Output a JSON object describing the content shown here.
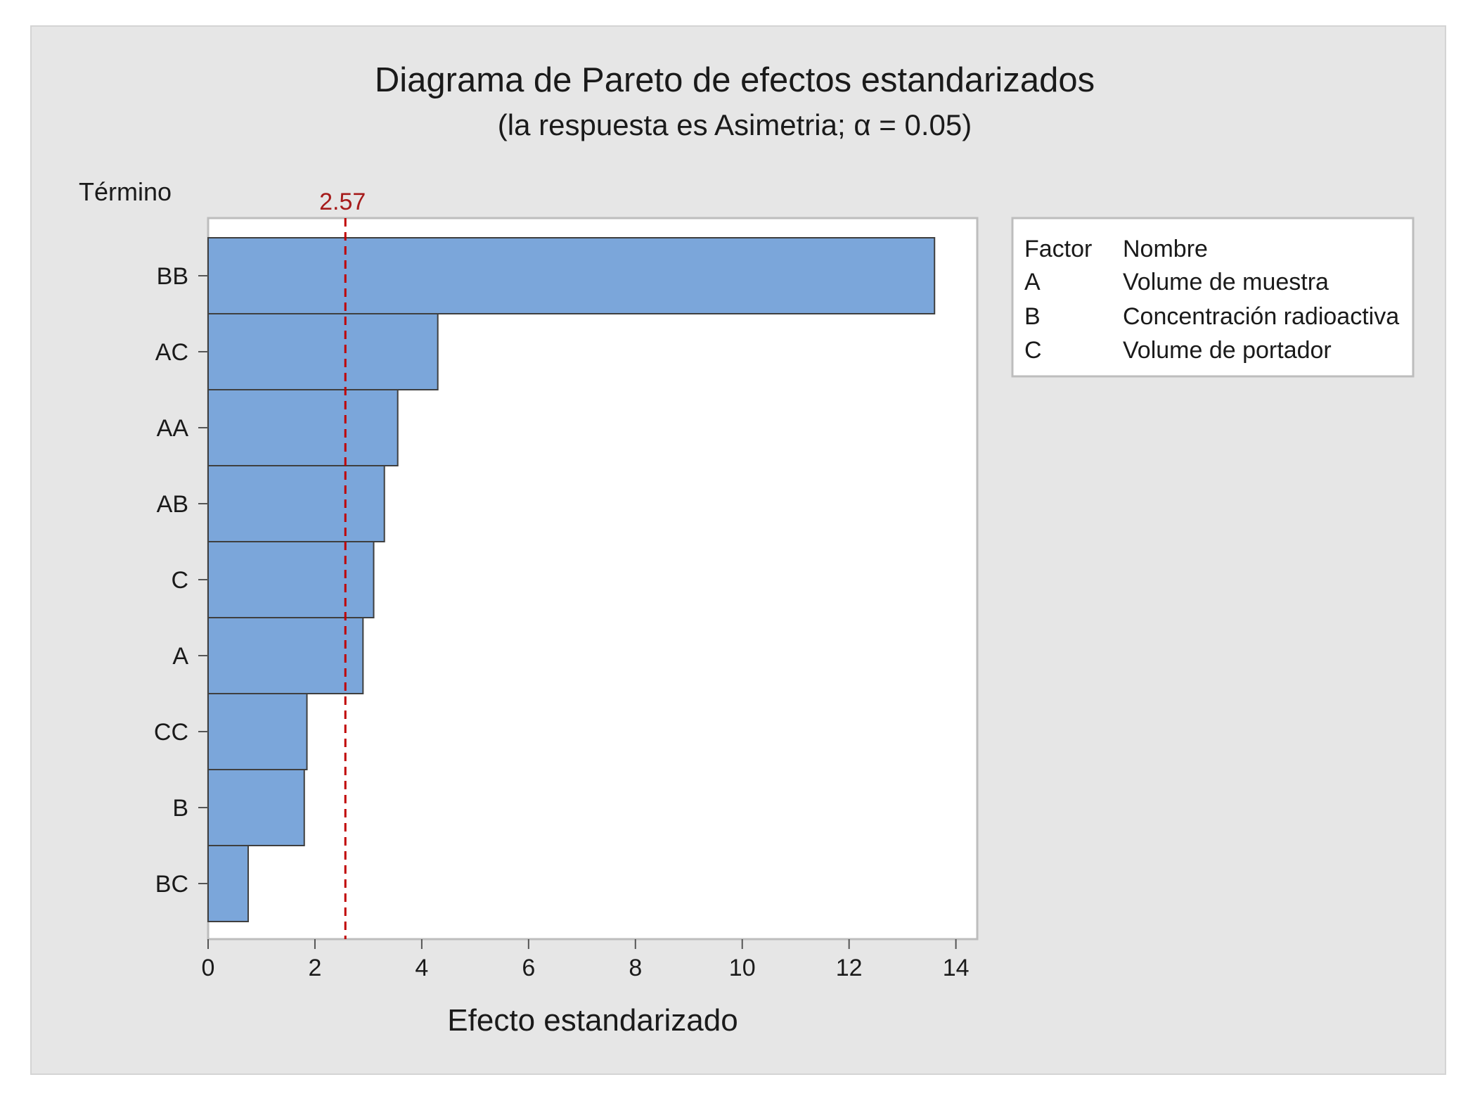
{
  "chart_data": {
    "type": "bar",
    "orientation": "horizontal",
    "title": "Diagrama de Pareto de efectos estandarizados",
    "subtitle": "(la respuesta es Asimetria; α = 0.05)",
    "xlabel": "Efecto estandarizado",
    "ylabel": "Término",
    "categories": [
      "BB",
      "AC",
      "AA",
      "AB",
      "C",
      "A",
      "CC",
      "B",
      "BC"
    ],
    "values": [
      13.6,
      4.3,
      3.55,
      3.3,
      3.1,
      2.9,
      1.85,
      1.8,
      0.75
    ],
    "xlim": [
      0,
      14.4
    ],
    "xticks": [
      0,
      2,
      4,
      6,
      8,
      10,
      12,
      14
    ],
    "reference_line": {
      "value": 2.57,
      "label": "2.57"
    },
    "bar_color": "#7ba6da",
    "reference_color": "#c00000",
    "grid": false,
    "legend": {
      "placement": "right",
      "header": [
        "Factor",
        "Nombre"
      ],
      "rows": [
        [
          "A",
          "Volume de muestra"
        ],
        [
          "B",
          "Concentración radioactiva"
        ],
        [
          "C",
          "Volume de portador"
        ]
      ]
    }
  }
}
